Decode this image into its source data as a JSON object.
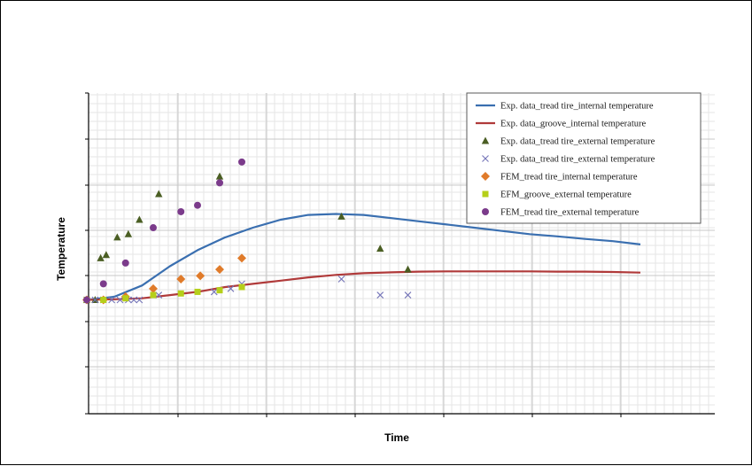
{
  "chart_data": {
    "type": "line",
    "title": "",
    "xlabel": "Time",
    "ylabel": "Temperature",
    "xlim": [
      0,
      100
    ],
    "ylim": [
      0,
      100
    ],
    "grid": true,
    "legend_position": "top-right",
    "series": [
      {
        "name": "Exp. data_tread tire_internal temperature",
        "kind": "line",
        "color": "#3a6fb0",
        "x": [
          0,
          5,
          10,
          15,
          20,
          25,
          30,
          35,
          40,
          45,
          50,
          55,
          60,
          65,
          70,
          75,
          80,
          85,
          90,
          95,
          100
        ],
        "y": [
          35.5,
          36.5,
          40,
          46,
          51,
          55,
          58,
          60.5,
          62,
          62.3,
          62,
          61,
          60,
          59,
          58,
          57,
          56,
          55.3,
          54.5,
          53.8,
          52.8
        ]
      },
      {
        "name": "Exp. data_groove_internal temperature",
        "kind": "line",
        "color": "#b03a3a",
        "x": [
          0,
          5,
          10,
          15,
          20,
          25,
          30,
          35,
          40,
          45,
          50,
          55,
          60,
          65,
          70,
          75,
          80,
          85,
          90,
          95,
          100
        ],
        "y": [
          35.5,
          35.7,
          36,
          37,
          38,
          39.5,
          40.5,
          41.5,
          42.5,
          43.3,
          43.8,
          44.1,
          44.3,
          44.4,
          44.4,
          44.4,
          44.4,
          44.3,
          44.3,
          44.2,
          44
        ]
      },
      {
        "name": "Exp. data_tread tire_external temperature",
        "kind": "triangle",
        "color": "#4a5e23",
        "x": [
          0,
          1.5,
          2.5,
          3.5,
          5.5,
          7.5,
          9.5,
          13,
          24,
          46,
          53,
          58
        ],
        "y": [
          35.5,
          35.5,
          48.5,
          49.5,
          55,
          56,
          60.5,
          68.5,
          74,
          61.5,
          51.5,
          45
        ]
      },
      {
        "name": "Exp. data_tread tire_external temperature",
        "kind": "cross",
        "color": "#7575b8",
        "x": [
          0,
          1.5,
          3,
          4.5,
          6,
          7.5,
          8.5,
          9.5,
          13,
          23,
          26,
          28,
          46,
          53,
          58
        ],
        "y": [
          35.5,
          35.5,
          35.5,
          35.5,
          35.5,
          35.5,
          35.5,
          35.5,
          37,
          38,
          39,
          40.5,
          42,
          37,
          37
        ]
      },
      {
        "name": "FEM_tread tire_internal temperature",
        "kind": "diamond",
        "color": "#e07b2a",
        "x": [
          0,
          3,
          7,
          12,
          17,
          20.5,
          24,
          28
        ],
        "y": [
          35.5,
          35.5,
          36.5,
          39,
          42,
          43,
          45,
          48.5
        ]
      },
      {
        "name": "EFM_groove_external temperature",
        "kind": "square",
        "color": "#b5cf1a",
        "x": [
          0,
          3,
          7,
          12,
          17,
          20,
          24,
          28
        ],
        "y": [
          35.5,
          35.5,
          36,
          37,
          37.5,
          38,
          38.5,
          39.5
        ]
      },
      {
        "name": "FEM_tread tire_external temperature",
        "kind": "circle",
        "color": "#7b3b8b",
        "x": [
          0,
          3,
          7,
          12,
          17,
          20,
          24,
          28
        ],
        "y": [
          35.5,
          40.5,
          47,
          58,
          63,
          65,
          72,
          78.5
        ]
      }
    ]
  }
}
